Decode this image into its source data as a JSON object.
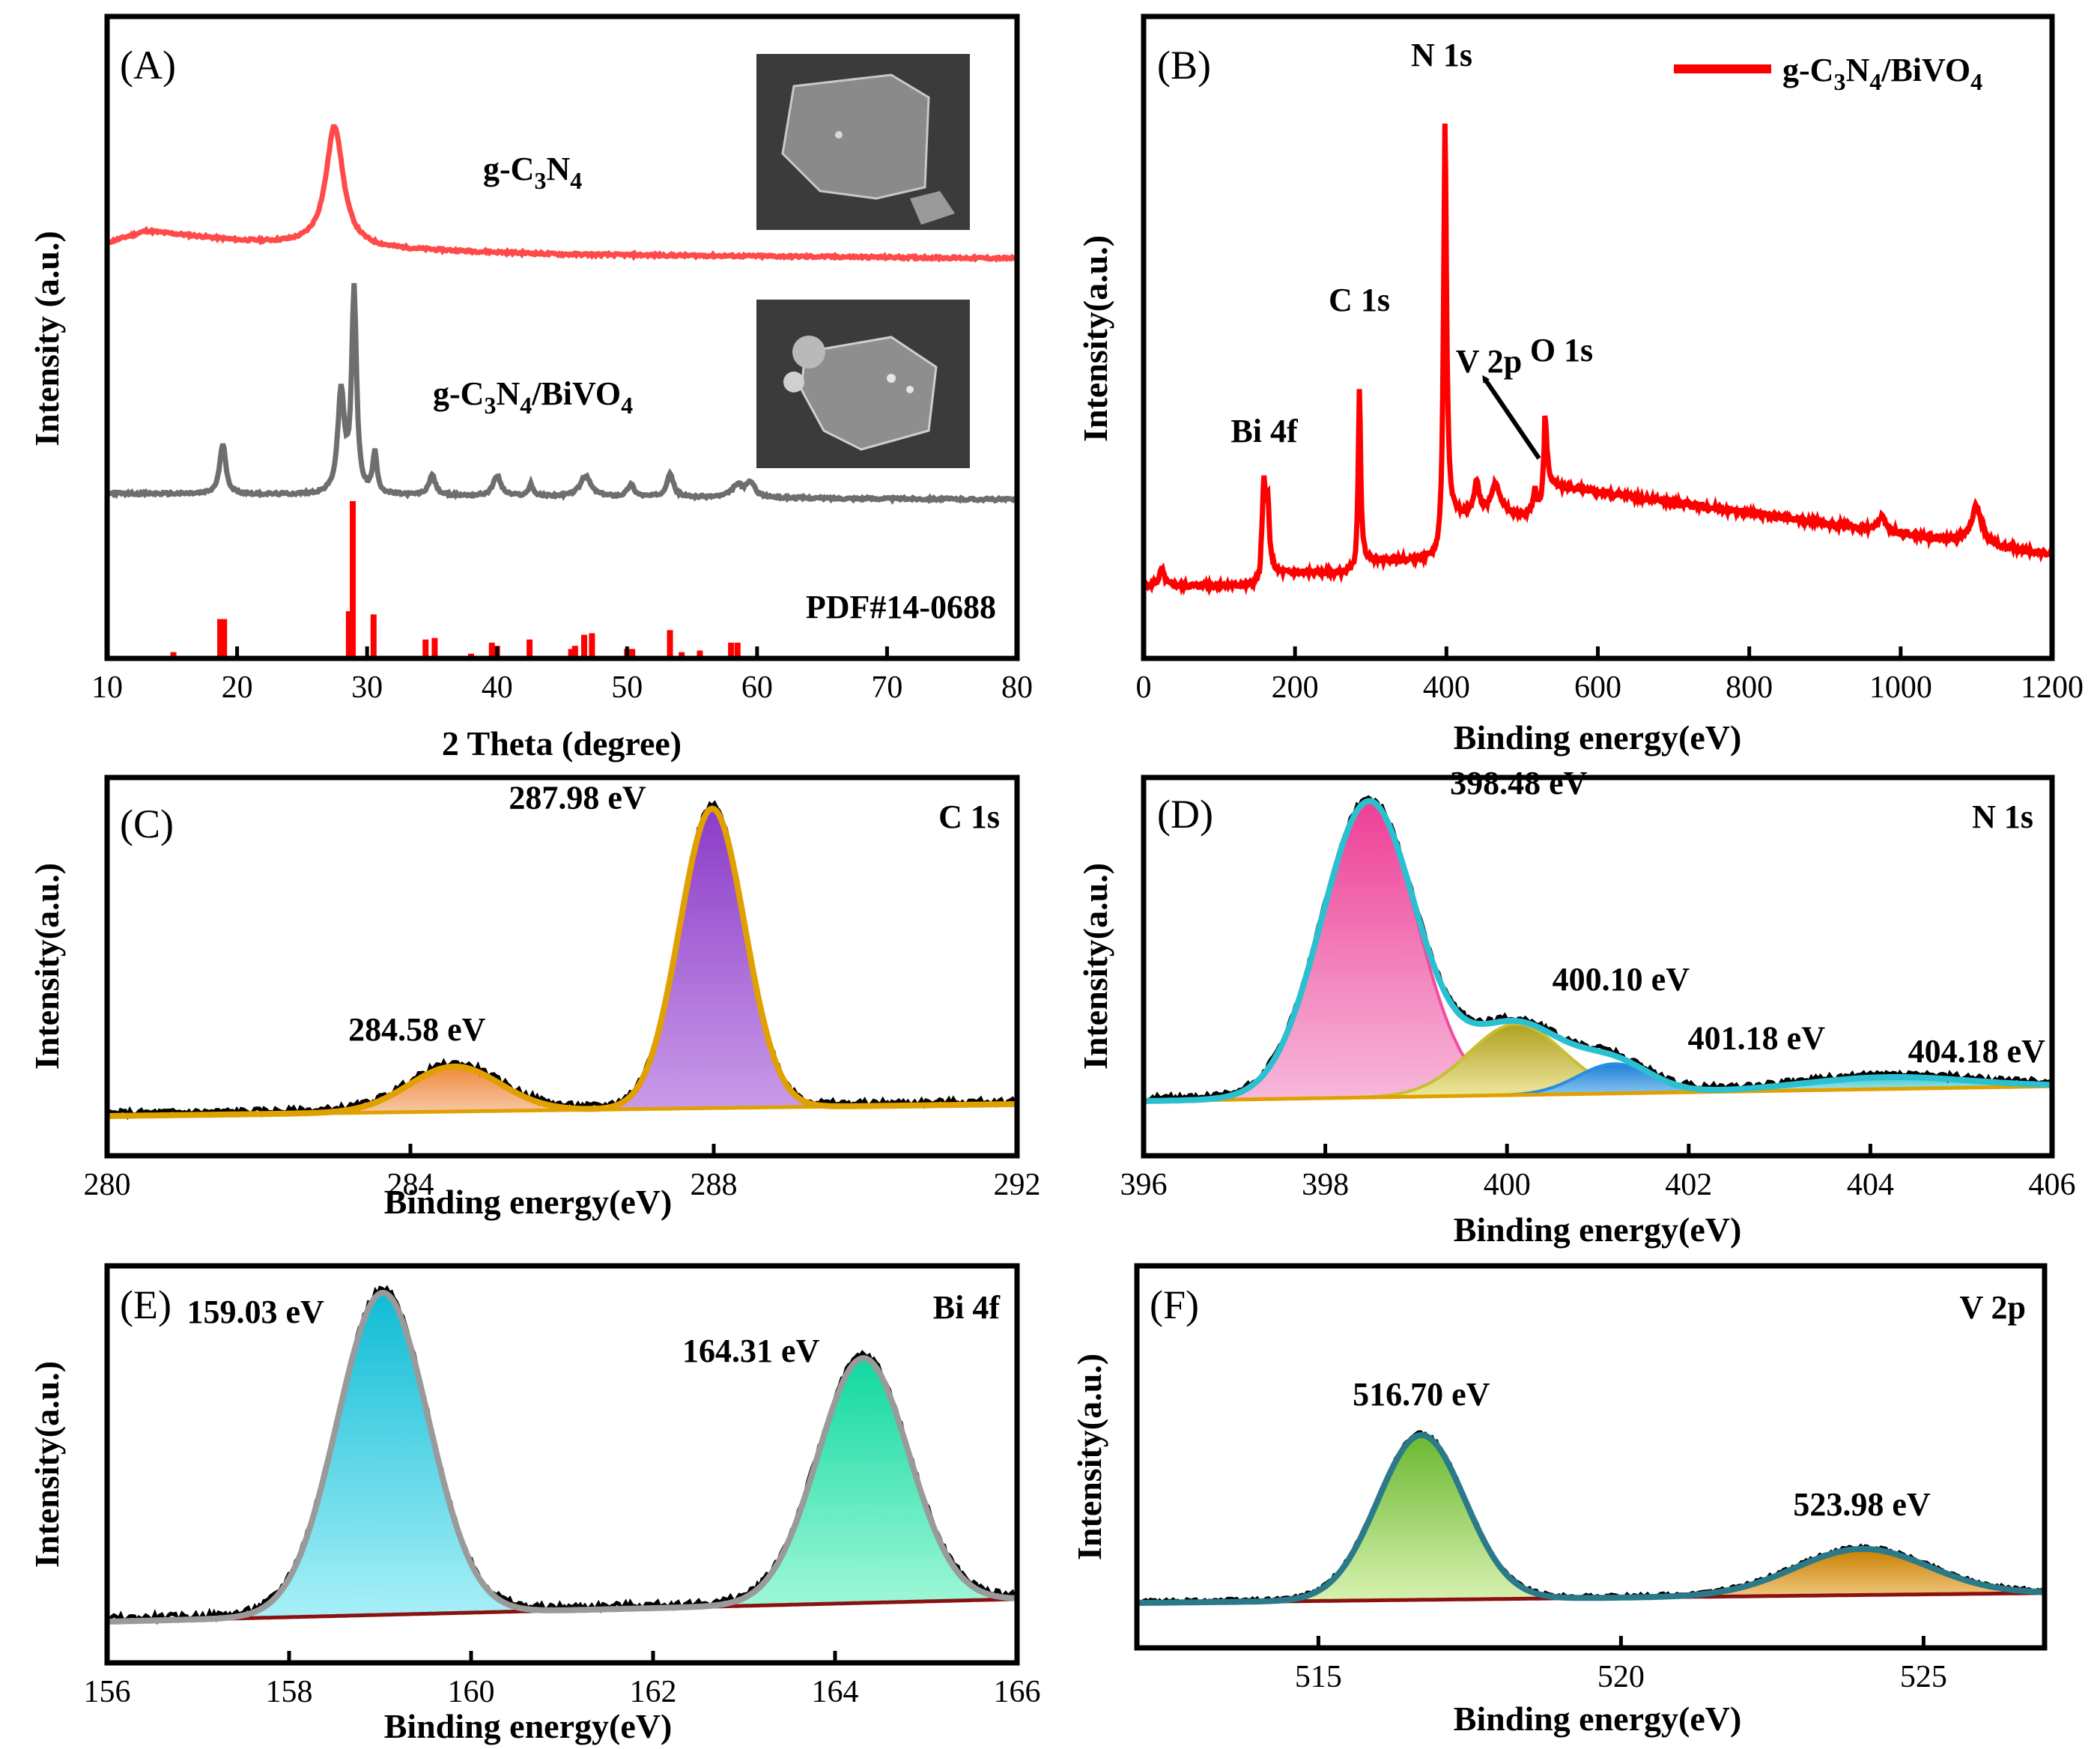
{
  "chart_data": [
    {
      "id": "A",
      "type": "line",
      "panel_label": "(A)",
      "xlabel": "2 Theta (degree)",
      "ylabel": "Intensity (a.u.)",
      "xlim": [
        10,
        80
      ],
      "xticks": [
        10,
        20,
        30,
        40,
        50,
        60,
        70,
        80
      ],
      "series": [
        {
          "name": "g-C3N4",
          "color": "#ff4a4a",
          "baseline": 0.55,
          "background": [
            [
              10,
              0.08
            ],
            [
              13,
              0.14
            ],
            [
              20,
              0.09
            ],
            [
              30,
              0.05
            ],
            [
              45,
              0.02
            ],
            [
              80,
              0.0
            ]
          ],
          "peaks": [
            [
              27.5,
              0.62,
              0.8
            ]
          ]
        },
        {
          "name": "g-C3N4/BiVO4",
          "color": "#6e6e6e",
          "baseline": 0.0,
          "background": [
            [
              10,
              0.03
            ],
            [
              80,
              0.0
            ]
          ],
          "peaks": [
            [
              18.9,
              0.25,
              0.28
            ],
            [
              28.0,
              0.5,
              0.3
            ],
            [
              29.0,
              1.0,
              0.22
            ],
            [
              30.6,
              0.2,
              0.2
            ],
            [
              35.0,
              0.1,
              0.3
            ],
            [
              40.0,
              0.1,
              0.35
            ],
            [
              42.6,
              0.06,
              0.2
            ],
            [
              46.8,
              0.1,
              0.5
            ],
            [
              50.3,
              0.06,
              0.3
            ],
            [
              53.3,
              0.12,
              0.3
            ],
            [
              58.5,
              0.06,
              0.5
            ],
            [
              59.5,
              0.07,
              0.4
            ]
          ]
        }
      ],
      "reference": {
        "name": "PDF#14-0688",
        "color": "#ff0000",
        "lines": [
          [
            15.1,
            0.04
          ],
          [
            18.7,
            0.25
          ],
          [
            19.0,
            0.25
          ],
          [
            28.6,
            0.3
          ],
          [
            28.9,
            1.0
          ],
          [
            30.5,
            0.28
          ],
          [
            34.5,
            0.12
          ],
          [
            35.2,
            0.13
          ],
          [
            38.0,
            0.03
          ],
          [
            39.6,
            0.1
          ],
          [
            40.0,
            0.08
          ],
          [
            42.5,
            0.12
          ],
          [
            45.7,
            0.06
          ],
          [
            46.0,
            0.08
          ],
          [
            46.7,
            0.15
          ],
          [
            47.3,
            0.16
          ],
          [
            50.0,
            0.06
          ],
          [
            50.4,
            0.06
          ],
          [
            53.3,
            0.18
          ],
          [
            54.2,
            0.04
          ],
          [
            55.6,
            0.05
          ],
          [
            58.0,
            0.1
          ],
          [
            58.5,
            0.1
          ]
        ]
      },
      "labels": [
        "g-C3N4",
        "g-C3N4/BiVO4",
        "PDF#14-0688"
      ]
    },
    {
      "id": "B",
      "type": "line",
      "panel_label": "(B)",
      "xlabel": "Binding energy(eV)",
      "ylabel": "Intensity(a.u.)",
      "xlim": [
        0,
        1200
      ],
      "xticks": [
        0,
        200,
        400,
        600,
        800,
        1000,
        1200
      ],
      "legend": "g-C3N4/BiVO4",
      "line_color": "#ff0000",
      "steps": [
        [
          0,
          0.0
        ],
        [
          155,
          0.04
        ],
        [
          285,
          0.08
        ],
        [
          398,
          0.22
        ],
        [
          530,
          0.32
        ],
        [
          1200,
          0.1
        ]
      ],
      "peaks": [
        [
          24,
          0.05,
          4
        ],
        [
          159,
          0.27,
          2.5
        ],
        [
          164,
          0.2,
          2.5
        ],
        [
          285,
          0.55,
          2
        ],
        [
          398,
          1.25,
          2.5
        ],
        [
          440,
          0.1,
          4
        ],
        [
          465,
          0.1,
          8
        ],
        [
          517,
          0.08,
          3
        ],
        [
          530,
          0.22,
          3
        ],
        [
          975,
          0.05,
          5
        ],
        [
          1100,
          0.12,
          8
        ]
      ],
      "annotations": [
        {
          "text": "Bi 4f",
          "x": 165
        },
        {
          "text": "C 1s",
          "x": 285
        },
        {
          "text": "N 1s",
          "x": 398
        },
        {
          "text": "V 2p",
          "x": 500
        },
        {
          "text": "O 1s",
          "x": 530
        }
      ]
    },
    {
      "id": "C",
      "type": "area",
      "panel_label": "(C)",
      "element": "C 1s",
      "xlabel": "Binding energy(eV)",
      "ylabel": "Intensity(a.u.)",
      "xlim": [
        280,
        292
      ],
      "xticks": [
        280,
        284,
        288,
        292
      ],
      "background": [
        [
          280,
          0.0
        ],
        [
          292,
          0.04
        ]
      ],
      "envelope_color": "#e0a000",
      "components": [
        {
          "center": 284.58,
          "amp": 0.15,
          "sigma": 0.6,
          "color": "#f08a3a",
          "label": "284.58 eV"
        },
        {
          "center": 287.98,
          "amp": 1.0,
          "sigma": 0.43,
          "color": "#9c4fd0",
          "label": "287.98 eV"
        }
      ]
    },
    {
      "id": "D",
      "type": "area",
      "panel_label": "(D)",
      "element": "N 1s",
      "xlabel": "Binding energy(eV)",
      "ylabel": "Intensity(a.u.)",
      "xlim": [
        396,
        406
      ],
      "xticks": [
        396,
        398,
        400,
        402,
        404,
        406
      ],
      "background": [
        [
          396,
          0.0
        ],
        [
          406,
          0.05
        ]
      ],
      "envelope_color": "#2bc0d0",
      "components": [
        {
          "center": 398.48,
          "amp": 1.0,
          "sigma": 0.52,
          "color": "#f04da0",
          "label": "398.48 eV"
        },
        {
          "center": 400.1,
          "amp": 0.24,
          "sigma": 0.52,
          "color": "#c8c030",
          "label": "400.10 eV"
        },
        {
          "center": 401.18,
          "amp": 0.1,
          "sigma": 0.4,
          "color": "#2a8ee0",
          "label": "401.18 eV"
        },
        {
          "center": 404.18,
          "amp": 0.04,
          "sigma": 0.9,
          "color": "#40c8d0",
          "label": "404.18 eV"
        }
      ]
    },
    {
      "id": "E",
      "type": "area",
      "panel_label": "(E)",
      "element": "Bi 4f",
      "xlabel": "Binding energy(eV)",
      "ylabel": "Intensity(a.u.)",
      "xlim": [
        156,
        166
      ],
      "xticks": [
        156,
        158,
        160,
        162,
        164,
        166
      ],
      "background": [
        [
          156,
          0.0
        ],
        [
          166,
          0.07
        ]
      ],
      "envelope_color": "#9a9a9a",
      "components": [
        {
          "center": 159.03,
          "amp": 1.0,
          "sigma": 0.5,
          "color": "#1ec8e0",
          "label": "159.03 eV"
        },
        {
          "center": 164.31,
          "amp": 0.76,
          "sigma": 0.5,
          "color": "#10f0b0",
          "label": "164.31 eV"
        }
      ]
    },
    {
      "id": "F",
      "type": "area",
      "panel_label": "(F)",
      "element": "V 2p",
      "xlabel": "Binding energy(eV)",
      "ylabel": "Intensity(a.u.)",
      "xlim": [
        512,
        527
      ],
      "xticks": [
        515,
        520,
        525
      ],
      "background": [
        [
          512,
          0.0
        ],
        [
          527,
          0.06
        ]
      ],
      "envelope_color": "#2a7a8a",
      "components": [
        {
          "center": 516.7,
          "amp": 1.0,
          "sigma": 0.72,
          "color": "#8ecf40",
          "label": "516.70 eV"
        },
        {
          "center": 523.98,
          "amp": 0.28,
          "sigma": 1.1,
          "color": "#d49010",
          "label": "523.98 eV"
        }
      ]
    }
  ]
}
